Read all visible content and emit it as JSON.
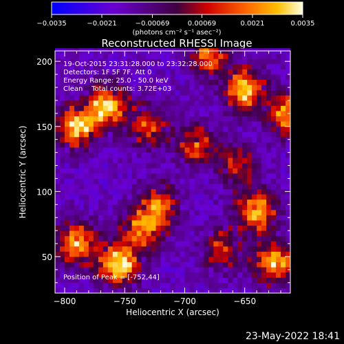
{
  "chart_data": {
    "type": "heatmap",
    "title": "Reconstructed RHESSI Image",
    "xlabel": "Heliocentric X (arcsec)",
    "ylabel": "Heliocentric Y (arcsec)",
    "xlim": [
      -808,
      -612
    ],
    "ylim": [
      22,
      208
    ],
    "x_ticks": [
      -800,
      -750,
      -700,
      -650
    ],
    "x_tick_labels": [
      "−800",
      "−750",
      "−700",
      "−650"
    ],
    "y_ticks": [
      50,
      100,
      150,
      200
    ],
    "y_tick_labels": [
      "50",
      "100",
      "150",
      "200"
    ],
    "colorbar": {
      "range": [
        -0.0035,
        0.0035
      ],
      "ticks": [
        -0.0035,
        -0.0021,
        -0.00069,
        0.00069,
        0.0021,
        0.0035
      ],
      "tick_labels": [
        "−0.0035",
        "−0.0021",
        "−0.00069",
        "0.00069",
        "0.0021",
        "0.0035"
      ],
      "unit_label": "(photons cm⁻² s⁻¹ asec⁻²)"
    },
    "sources": [
      {
        "x": -755,
        "y": 44,
        "peak": 1.0
      },
      {
        "x": -790,
        "y": 60,
        "peak": 0.8
      },
      {
        "x": -735,
        "y": 72,
        "peak": 0.75
      },
      {
        "x": -720,
        "y": 90,
        "peak": 0.6
      },
      {
        "x": -640,
        "y": 85,
        "peak": 0.8
      },
      {
        "x": -625,
        "y": 45,
        "peak": 0.8
      },
      {
        "x": -670,
        "y": 55,
        "peak": 0.5
      },
      {
        "x": -650,
        "y": 178,
        "peak": 0.85
      },
      {
        "x": -615,
        "y": 160,
        "peak": 0.75
      },
      {
        "x": -765,
        "y": 165,
        "peak": 0.9
      },
      {
        "x": -790,
        "y": 150,
        "peak": 0.85
      },
      {
        "x": -730,
        "y": 150,
        "peak": 0.55
      },
      {
        "x": -690,
        "y": 135,
        "peak": 0.55
      },
      {
        "x": -680,
        "y": 205,
        "peak": 0.6
      },
      {
        "x": -655,
        "y": 120,
        "peak": 0.45
      }
    ],
    "annotations": [
      "19-Oct-2015 23:31:28.000 to 23:32:28.000",
      "Detectors: 1F 5F 7F, Att 0",
      "Energy Range: 25.0 - 50.0 keV",
      "Clean    Total counts: 3.72E+03"
    ],
    "peak_label": "Position of Peak = [-752,44]"
  },
  "footer": {
    "date": "23-May-2022 18:41"
  }
}
